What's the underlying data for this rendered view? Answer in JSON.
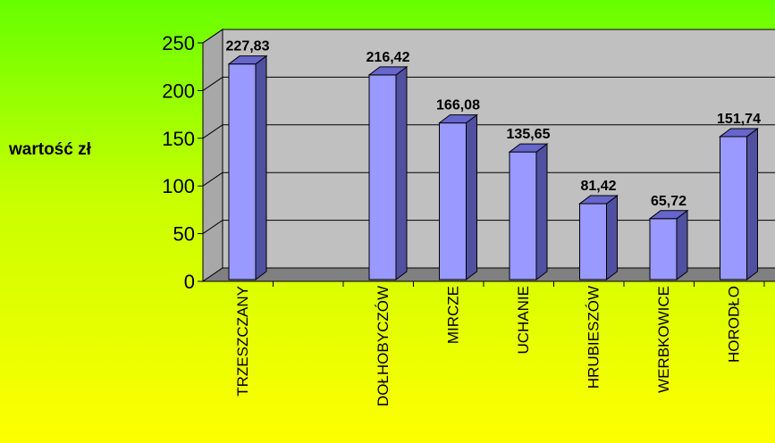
{
  "chart_data": {
    "type": "bar",
    "title": "",
    "xlabel": "",
    "ylabel": "wartość zł",
    "categories": [
      "TRZESZCZANY",
      "",
      "DOŁHOBYCZÓW",
      "MIRCZE",
      "UCHANIE",
      "HRUBIESZÓW",
      "WERBKOWICE",
      "HORODŁO"
    ],
    "values": [
      227.83,
      null,
      216.42,
      166.08,
      135.65,
      81.42,
      65.72,
      151.74
    ],
    "value_labels": [
      "227,83",
      "",
      "216,42",
      "166,08",
      "135,65",
      "81,42",
      "65,72",
      "151,74"
    ],
    "y_ticks": [
      "0",
      "50",
      "100",
      "150",
      "200",
      "250"
    ],
    "ylim": [
      0,
      250
    ],
    "grid": true,
    "bar_color": "#9999ff",
    "wall_color": "#c0c0c0",
    "floor_color": "#808080"
  }
}
